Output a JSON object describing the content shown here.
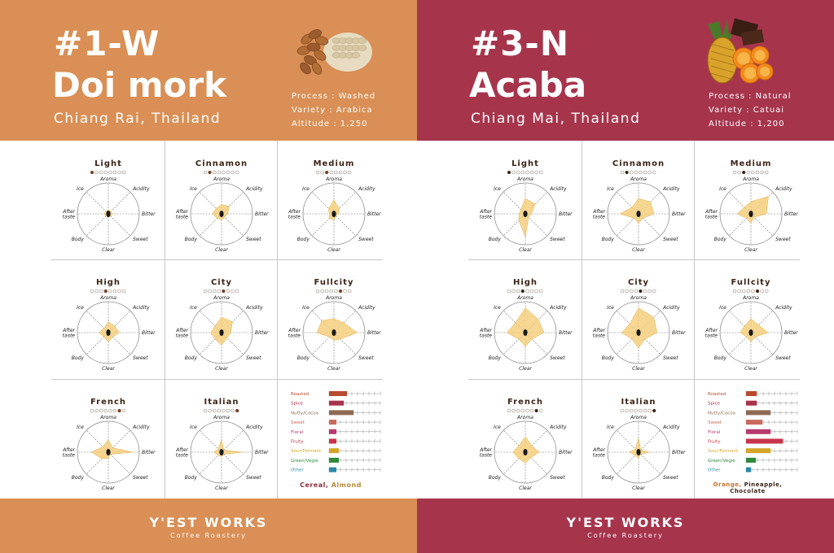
{
  "panels": [
    {
      "code": "#1-W",
      "name": "Doi mork",
      "location": "Chiang Rai, Thailand",
      "process": "Process : Washed",
      "variety": "Variety : Arabica",
      "altitude": "Altitude : 1,250",
      "color": "#d98f55",
      "brand": "Y'EST WORKS",
      "brand_sub": "Coffee Roastery",
      "icon": "almond-oat-icon",
      "notes_main": "Cereal,",
      "notes_rest": "Almond",
      "notes_main_color": "#8b2d3c",
      "notes_rest_color": "#b58a3a",
      "flavors": [
        {
          "label": "Roasted",
          "value": 0.22,
          "color": "#b84a2e"
        },
        {
          "label": "Spice",
          "value": 0.18,
          "color": "#a8344a"
        },
        {
          "label": "Nutty/Cocoa",
          "value": 0.3,
          "color": "#8d6a54"
        },
        {
          "label": "Sweet",
          "value": 0.09,
          "color": "#c86b5c"
        },
        {
          "label": "Floral",
          "value": 0.09,
          "color": "#b83a6e"
        },
        {
          "label": "Fruity",
          "value": 0.09,
          "color": "#c8344a"
        },
        {
          "label": "Sour/Ferment",
          "value": 0.12,
          "color": "#d4a628"
        },
        {
          "label": "Green/Vegie",
          "value": 0.12,
          "color": "#2e8a3a"
        },
        {
          "label": "Other",
          "value": 0.09,
          "color": "#2a8aa6"
        }
      ],
      "roasts": [
        {
          "name": "Light",
          "level": 1,
          "profile": [
            0.15,
            0.1,
            0.15,
            0.1,
            0.1,
            0.1,
            0.15,
            0.1
          ]
        },
        {
          "name": "Cinnamon",
          "level": 2,
          "profile": [
            0.3,
            0.35,
            0.2,
            0.15,
            0.2,
            0.2,
            0.3,
            0.25
          ]
        },
        {
          "name": "Medium",
          "level": 3,
          "profile": [
            0.45,
            0.25,
            0.15,
            0.1,
            0.2,
            0.2,
            0.15,
            0.25
          ]
        },
        {
          "name": "High",
          "level": 4,
          "profile": [
            0.35,
            0.3,
            0.35,
            0.2,
            0.3,
            0.2,
            0.3,
            0.2
          ]
        },
        {
          "name": "City",
          "level": 5,
          "profile": [
            0.5,
            0.5,
            0.3,
            0.25,
            0.4,
            0.3,
            0.35,
            0.3
          ]
        },
        {
          "name": "Fullcity",
          "level": 6,
          "profile": [
            0.45,
            0.45,
            0.75,
            0.3,
            0.25,
            0.2,
            0.55,
            0.55
          ]
        },
        {
          "name": "French",
          "level": 7,
          "profile": [
            0.4,
            0.2,
            0.8,
            0.1,
            0.2,
            0.3,
            0.55,
            0.25
          ]
        },
        {
          "name": "Italian",
          "level": 8,
          "profile": [
            0.4,
            0.1,
            0.65,
            0.1,
            0.15,
            0.15,
            0.25,
            0.15
          ]
        }
      ]
    },
    {
      "code": "#3-N",
      "name": "Acaba",
      "location": "Chiang Mai, Thailand",
      "process": "Process : Natural",
      "variety": "Variety : Catuai",
      "altitude": "Altitude : 1,200",
      "color": "#a6354c",
      "brand": "Y'EST WORKS",
      "brand_sub": "Coffee Roastery",
      "icon": "pineapple-orange-chocolate-icon",
      "notes_main": "Orange,",
      "notes_rest": "Pineapple, Chocolate",
      "notes_main_color": "#c8702a",
      "notes_rest_color": "#3b2417",
      "flavors": [
        {
          "label": "Roasted",
          "value": 0.13,
          "color": "#b84a2e"
        },
        {
          "label": "Spice",
          "value": 0.13,
          "color": "#a8344a"
        },
        {
          "label": "Nutty/Cocoa",
          "value": 0.3,
          "color": "#8d6a54"
        },
        {
          "label": "Sweet",
          "value": 0.2,
          "color": "#c86b5c"
        },
        {
          "label": "Floral",
          "value": 0.3,
          "color": "#b83a6e"
        },
        {
          "label": "Fruity",
          "value": 0.45,
          "color": "#c8344a"
        },
        {
          "label": "Sour/Ferment",
          "value": 0.3,
          "color": "#d4a628"
        },
        {
          "label": "Green/Vegie",
          "value": 0.12,
          "color": "#2e8a3a"
        },
        {
          "label": "Other",
          "value": 0.06,
          "color": "#2a8aa6"
        }
      ],
      "roasts": [
        {
          "name": "Light",
          "level": 1,
          "profile": [
            0.5,
            0.45,
            0.2,
            0.15,
            0.75,
            0.3,
            0.2,
            0.2
          ]
        },
        {
          "name": "Cinnamon",
          "level": 2,
          "profile": [
            0.5,
            0.55,
            0.5,
            0.2,
            0.3,
            0.2,
            0.6,
            0.3
          ]
        },
        {
          "name": "Medium",
          "level": 3,
          "profile": [
            0.4,
            0.8,
            0.5,
            0.15,
            0.3,
            0.2,
            0.45,
            0.3
          ]
        },
        {
          "name": "High",
          "level": 4,
          "profile": [
            0.8,
            0.6,
            0.6,
            0.3,
            0.45,
            0.3,
            0.6,
            0.45
          ]
        },
        {
          "name": "City",
          "level": 5,
          "profile": [
            0.8,
            0.7,
            0.6,
            0.3,
            0.5,
            0.3,
            0.55,
            0.4
          ]
        },
        {
          "name": "Fullcity",
          "level": 6,
          "profile": [
            0.45,
            0.35,
            0.55,
            0.2,
            0.3,
            0.2,
            0.35,
            0.3
          ]
        },
        {
          "name": "French",
          "level": 7,
          "profile": [
            0.5,
            0.3,
            0.45,
            0.25,
            0.35,
            0.3,
            0.4,
            0.3
          ]
        },
        {
          "name": "Italian",
          "level": 8,
          "profile": [
            0.45,
            0.1,
            0.35,
            0.1,
            0.2,
            0.15,
            0.3,
            0.15
          ]
        }
      ]
    }
  ],
  "axes": [
    "Aroma",
    "Acidity",
    "Bitter",
    "Sweet",
    "Clear",
    "Body",
    "After taste",
    "Ice"
  ]
}
